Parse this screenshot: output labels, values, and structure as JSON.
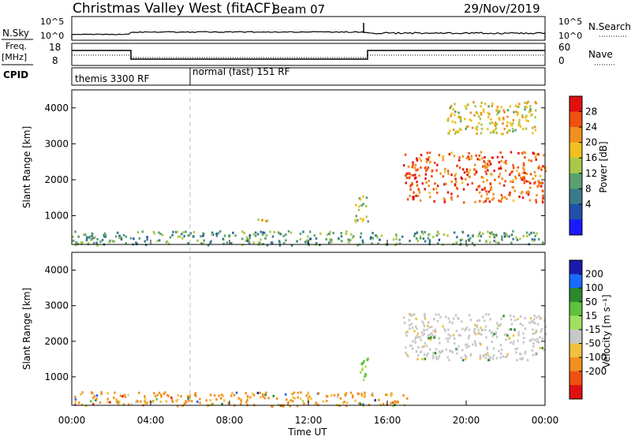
{
  "header": {
    "title": "Christmas Valley West (fitACF)",
    "beam": "Beam 07",
    "date": "29/Nov/2019"
  },
  "top_panels": {
    "nsky_label": "N.Sky",
    "nsky_ticks": [
      "10^5",
      "10^0"
    ],
    "nsearch_label": "N.Search",
    "nsearch_ticks": [
      "10^5",
      "10^0"
    ],
    "freq_label_1": "Freq.",
    "freq_label_2": "[MHz]",
    "freq_ticks": [
      "18",
      "8"
    ],
    "nave_label": "Nave",
    "nave_ticks": [
      "60",
      "0"
    ],
    "cpid_label": "CPID",
    "cpid_entries": [
      "themis 3300 RF",
      "normal (fast) 151 RF"
    ]
  },
  "chart_data": [
    {
      "type": "heatmap",
      "name": "power",
      "xlabel": "Time UT",
      "ylabel": "Slant Range [km]",
      "ylim": [
        200,
        4500
      ],
      "yticks": [
        "1000",
        "2000",
        "3000",
        "4000"
      ],
      "colorbar_label": "Power [dB]",
      "colorbar_ticks": [
        "4",
        "8",
        "12",
        "16",
        "20",
        "24",
        "28"
      ],
      "colors": [
        "#1a1aff",
        "#2050a8",
        "#3a7a8a",
        "#5aa070",
        "#a8c84a",
        "#f0c020",
        "#f09020",
        "#f05010",
        "#e01010"
      ],
      "regions": [
        {
          "t": [
            0.0,
            24.0
          ],
          "r": [
            200,
            600
          ],
          "level": 0.35
        },
        {
          "t": [
            9.0,
            10.0
          ],
          "r": [
            750,
            950
          ],
          "level": 0.7
        },
        {
          "t": [
            14.3,
            15.0
          ],
          "r": [
            850,
            1600
          ],
          "level": 0.5
        },
        {
          "t": [
            16.8,
            24.0
          ],
          "r": [
            1400,
            2800
          ],
          "level": 0.85
        },
        {
          "t": [
            19.0,
            23.5
          ],
          "r": [
            3300,
            4200
          ],
          "level": 0.6
        }
      ]
    },
    {
      "type": "heatmap",
      "name": "velocity",
      "xlabel": "Time UT",
      "ylabel": "Slant Range [km]",
      "ylim": [
        200,
        4500
      ],
      "yticks": [
        "1000",
        "2000",
        "3000",
        "4000"
      ],
      "colorbar_label": "Velocity [m s⁻¹]",
      "colorbar_ticks": [
        "200",
        "100",
        "50",
        "15",
        "-15",
        "-50",
        "-100",
        "-200"
      ],
      "colors": [
        "#1a1aaa",
        "#1a6aff",
        "#2a8a2a",
        "#60c040",
        "#a0e060",
        "#c8c8c8",
        "#f0c040",
        "#f09020",
        "#f05010",
        "#e01010"
      ],
      "regions": [
        {
          "t": [
            0.0,
            17.0
          ],
          "r": [
            200,
            600
          ],
          "level": "-15..-50"
        },
        {
          "t": [
            14.5,
            15.0
          ],
          "r": [
            850,
            1600
          ],
          "level": "50"
        },
        {
          "t": [
            16.8,
            24.0
          ],
          "r": [
            1500,
            2800
          ],
          "level": "-15..15"
        }
      ]
    }
  ],
  "x_axis": {
    "label": "Time UT",
    "ticks": [
      "00:00",
      "04:00",
      "08:00",
      "12:00",
      "16:00",
      "20:00",
      "00:00"
    ]
  }
}
